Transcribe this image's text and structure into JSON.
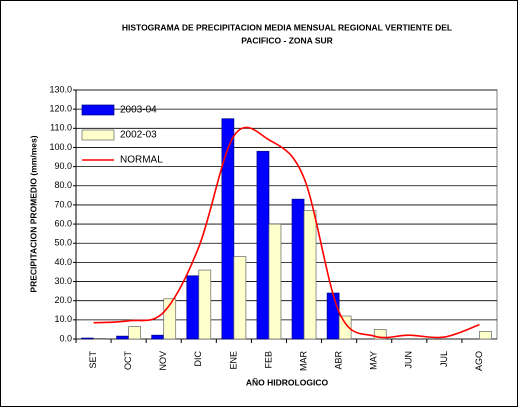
{
  "chart_data": {
    "type": "bar",
    "title": "HISTOGRAMA DE PRECIPITACION MEDIA MENSUAL REGIONAL VERTIENTE DEL",
    "subtitle": "PACIFICO - ZONA SUR",
    "x_label": "AÑO HIDROLOGICO",
    "y_label": "PRECIPITACION PROMEDIO (mm/mes)",
    "categories": [
      "SET",
      "OCT",
      "NOV",
      "DIC",
      "ENE",
      "FEB",
      "MAR",
      "ABR",
      "MAY",
      "JUN",
      "JUL",
      "AGO"
    ],
    "series": [
      {
        "name": "2003-04",
        "color": "#0000ff",
        "type": "bar",
        "values": [
          0.5,
          1.5,
          2,
          33,
          115,
          98,
          73,
          24,
          0,
          0,
          0,
          0
        ]
      },
      {
        "name": "2002-03",
        "color": "#ffffcc",
        "type": "bar",
        "values": [
          0.3,
          6.5,
          21,
          36,
          43,
          60,
          67,
          12,
          5,
          0,
          0,
          4
        ]
      },
      {
        "name": "NORMAL",
        "color": "#ff0000",
        "type": "line",
        "values": [
          8.5,
          9.5,
          14,
          48,
          106,
          104,
          84,
          14,
          1.5,
          2,
          1,
          7.5
        ]
      }
    ],
    "ylim": [
      0,
      130
    ],
    "yticks": [
      {
        "value": 0,
        "label": "0.0"
      },
      {
        "value": 10,
        "label": "10.0"
      },
      {
        "value": 20,
        "label": "20.0"
      },
      {
        "value": 30,
        "label": "30.0"
      },
      {
        "value": 40,
        "label": "40.0"
      },
      {
        "value": 50,
        "label": "50.0"
      },
      {
        "value": 60,
        "label": "60.0"
      },
      {
        "value": 70,
        "label": "70.0"
      },
      {
        "value": 80,
        "label": "80.0"
      },
      {
        "value": 90,
        "label": "90.0"
      },
      {
        "value": 100,
        "label": "100.0"
      },
      {
        "value": 110,
        "label": "110.0"
      },
      {
        "value": 120,
        "label": "120.0"
      },
      {
        "value": 130,
        "label": "130.0"
      }
    ],
    "grid": true,
    "legend": "top-left"
  }
}
